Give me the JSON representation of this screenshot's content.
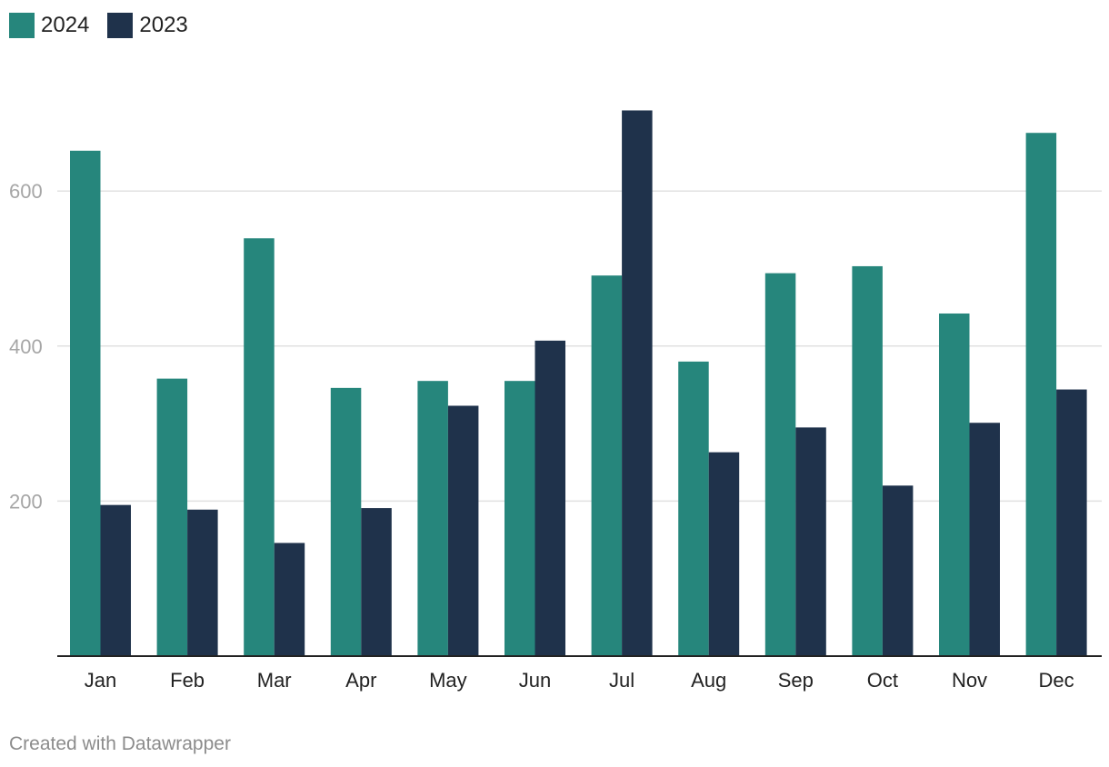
{
  "chart_data": {
    "type": "bar",
    "categories": [
      "Jan",
      "Feb",
      "Mar",
      "Apr",
      "May",
      "Jun",
      "Jul",
      "Aug",
      "Sep",
      "Oct",
      "Nov",
      "Dec"
    ],
    "series": [
      {
        "name": "2024",
        "color": "#26867c",
        "values": [
          652,
          358,
          539,
          346,
          355,
          355,
          491,
          380,
          494,
          503,
          442,
          675
        ]
      },
      {
        "name": "2023",
        "color": "#1f324b",
        "values": [
          195,
          189,
          146,
          191,
          323,
          407,
          704,
          263,
          295,
          220,
          301,
          344
        ]
      }
    ],
    "ylim": [
      0,
      700
    ],
    "yticks": [
      200,
      400,
      600
    ],
    "grid": true,
    "legend_position": "top-left",
    "title": "",
    "xlabel": "",
    "ylabel": ""
  },
  "footer": {
    "credit": "Created with Datawrapper"
  }
}
